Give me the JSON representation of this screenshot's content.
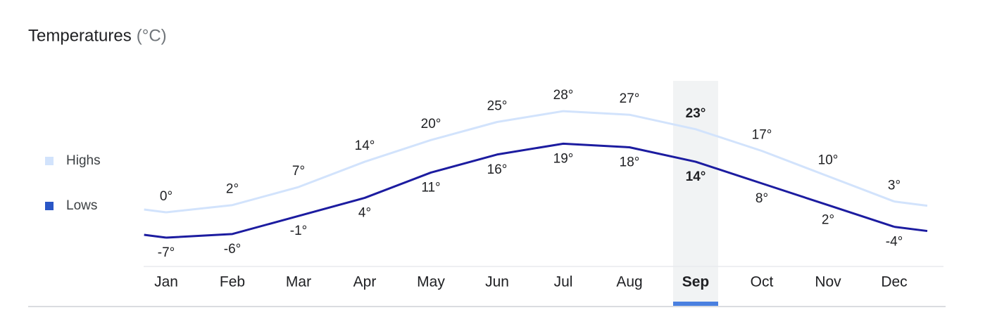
{
  "chart_data": {
    "type": "line",
    "title": "Temperatures",
    "unit": "(°C)",
    "categories": [
      "Jan",
      "Feb",
      "Mar",
      "Apr",
      "May",
      "Jun",
      "Jul",
      "Aug",
      "Sep",
      "Oct",
      "Nov",
      "Dec"
    ],
    "selected": "Sep",
    "series": [
      {
        "name": "Highs",
        "color": "#d2e3fc",
        "legend_color": "#d2e3fc",
        "values": [
          0,
          2,
          7,
          14,
          20,
          25,
          28,
          27,
          23,
          17,
          10,
          3
        ],
        "value_labels": [
          "0°",
          "2°",
          "7°",
          "14°",
          "20°",
          "25°",
          "28°",
          "27°",
          "23°",
          "17°",
          "10°",
          "3°"
        ]
      },
      {
        "name": "Lows",
        "color": "#1c1ca0",
        "legend_color": "#2a56c6",
        "values": [
          -7,
          -6,
          -1,
          4,
          11,
          16,
          19,
          18,
          14,
          8,
          2,
          -4
        ],
        "value_labels": [
          "-7°",
          "-6°",
          "-1°",
          "4°",
          "11°",
          "16°",
          "19°",
          "18°",
          "14°",
          "8°",
          "2°",
          "-4°"
        ]
      }
    ]
  }
}
